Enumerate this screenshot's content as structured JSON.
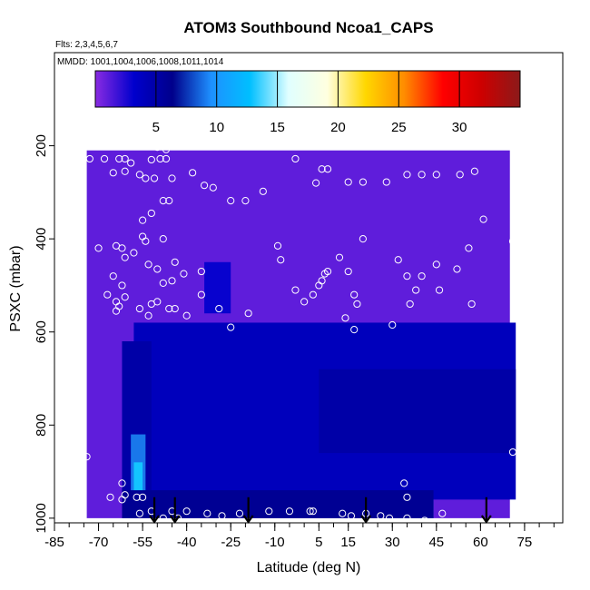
{
  "chart_data": {
    "type": "heatmap",
    "title": "ATOM3 Southbound Ncoa1_CAPS",
    "flights_label": "Flts: 2,3,4,5,6,7",
    "dates_label": "MMDD: 1001,1004,1006,1008,1011,1014",
    "xlabel": "Latitude (deg N)",
    "ylabel": "PSXC (mbar)",
    "xlim": [
      -85,
      88
    ],
    "ylim": [
      1010,
      0
    ],
    "x_ticks": [
      -85,
      -70,
      -55,
      -40,
      -25,
      -10,
      5,
      15,
      30,
      45,
      60,
      75
    ],
    "y_ticks": [
      200,
      400,
      600,
      800,
      1000
    ],
    "colorbar": {
      "min": 0,
      "max": 35,
      "ticks": [
        5,
        10,
        15,
        20,
        25,
        30
      ],
      "colors": [
        "#8a2be2",
        "#0000cd",
        "#00008b",
        "#1e90ff",
        "#00bfff",
        "#e0ffff",
        "#ffffe0",
        "#ffd700",
        "#ff8c00",
        "#ff0000",
        "#cd0000",
        "#8b1a1a"
      ]
    },
    "background_value": 1,
    "field": [
      {
        "lat": [
          -74,
          70
        ],
        "p": [
          210,
          1000
        ],
        "value": 1
      },
      {
        "lat": [
          -34,
          -25
        ],
        "p": [
          450,
          560
        ],
        "value": 3
      },
      {
        "lat": [
          -58,
          72
        ],
        "p": [
          580,
          960
        ],
        "value": 4
      },
      {
        "lat": [
          -62,
          -52
        ],
        "p": [
          620,
          960
        ],
        "value": 5
      },
      {
        "lat": [
          -59,
          -54
        ],
        "p": [
          820,
          960
        ],
        "value": 9
      },
      {
        "lat": [
          -58,
          -55
        ],
        "p": [
          880,
          955
        ],
        "value": 13
      },
      {
        "lat": [
          5,
          72
        ],
        "p": [
          680,
          860
        ],
        "value": 5
      },
      {
        "lat": [
          28,
          44
        ],
        "p": [
          960,
          1000
        ],
        "value": 9
      },
      {
        "lat": [
          -62,
          44
        ],
        "p": [
          940,
          1000
        ],
        "value": 6
      }
    ],
    "observation_points": [
      {
        "lat": -73,
        "p": 228
      },
      {
        "lat": -68,
        "p": 228
      },
      {
        "lat": -63,
        "p": 228
      },
      {
        "lat": -61,
        "p": 228
      },
      {
        "lat": -59,
        "p": 237
      },
      {
        "lat": -61,
        "p": 255
      },
      {
        "lat": -56,
        "p": 262
      },
      {
        "lat": -54,
        "p": 270
      },
      {
        "lat": -51,
        "p": 270
      },
      {
        "lat": -52,
        "p": 230
      },
      {
        "lat": -49,
        "p": 228
      },
      {
        "lat": -47,
        "p": 228
      },
      {
        "lat": -55,
        "p": 198
      },
      {
        "lat": -50,
        "p": 203
      },
      {
        "lat": -47,
        "p": 208
      },
      {
        "lat": -38,
        "p": 258
      },
      {
        "lat": -34,
        "p": 285
      },
      {
        "lat": -31,
        "p": 290
      },
      {
        "lat": -25,
        "p": 318
      },
      {
        "lat": -20,
        "p": 318
      },
      {
        "lat": -14,
        "p": 298
      },
      {
        "lat": -12,
        "p": 198
      },
      {
        "lat": -3,
        "p": 228
      },
      {
        "lat": 4,
        "p": 280
      },
      {
        "lat": 6,
        "p": 250
      },
      {
        "lat": 8,
        "p": 250
      },
      {
        "lat": 15,
        "p": 278
      },
      {
        "lat": 20,
        "p": 278
      },
      {
        "lat": 24,
        "p": 198
      },
      {
        "lat": 28,
        "p": 278
      },
      {
        "lat": 35,
        "p": 262
      },
      {
        "lat": 40,
        "p": 262
      },
      {
        "lat": 45,
        "p": 262
      },
      {
        "lat": 53,
        "p": 262
      },
      {
        "lat": 58,
        "p": 255
      },
      {
        "lat": 65,
        "p": 198
      },
      {
        "lat": 68,
        "p": 198
      },
      {
        "lat": 61,
        "p": 358
      },
      {
        "lat": 71,
        "p": 405
      },
      {
        "lat": 56,
        "p": 420
      },
      {
        "lat": -45,
        "p": 270
      },
      {
        "lat": -46,
        "p": 318
      },
      {
        "lat": -48,
        "p": 318
      },
      {
        "lat": -65,
        "p": 258
      },
      {
        "lat": -85,
        "p": 370
      },
      {
        "lat": -70,
        "p": 420
      },
      {
        "lat": -64,
        "p": 415
      },
      {
        "lat": -62,
        "p": 420
      },
      {
        "lat": -61,
        "p": 440
      },
      {
        "lat": -58,
        "p": 430
      },
      {
        "lat": -55,
        "p": 395
      },
      {
        "lat": -55,
        "p": 360
      },
      {
        "lat": -52,
        "p": 345
      },
      {
        "lat": -54,
        "p": 405
      },
      {
        "lat": -53,
        "p": 455
      },
      {
        "lat": -48,
        "p": 400
      },
      {
        "lat": -50,
        "p": 465
      },
      {
        "lat": -44,
        "p": 450
      },
      {
        "lat": -48,
        "p": 495
      },
      {
        "lat": -45,
        "p": 490
      },
      {
        "lat": -41,
        "p": 475
      },
      {
        "lat": -35,
        "p": 470
      },
      {
        "lat": -65,
        "p": 480
      },
      {
        "lat": -67,
        "p": 520
      },
      {
        "lat": -62,
        "p": 500
      },
      {
        "lat": -61,
        "p": 525
      },
      {
        "lat": -64,
        "p": 535
      },
      {
        "lat": -63,
        "p": 545
      },
      {
        "lat": -64,
        "p": 555
      },
      {
        "lat": -77,
        "p": 550
      },
      {
        "lat": -56,
        "p": 550
      },
      {
        "lat": -53,
        "p": 565
      },
      {
        "lat": -52,
        "p": 540
      },
      {
        "lat": -50,
        "p": 535
      },
      {
        "lat": -46,
        "p": 550
      },
      {
        "lat": -44,
        "p": 550
      },
      {
        "lat": -40,
        "p": 565
      },
      {
        "lat": -35,
        "p": 520
      },
      {
        "lat": -29,
        "p": 550
      },
      {
        "lat": -25,
        "p": 590
      },
      {
        "lat": -19,
        "p": 560
      },
      {
        "lat": -9,
        "p": 415
      },
      {
        "lat": -8,
        "p": 445
      },
      {
        "lat": -3,
        "p": 510
      },
      {
        "lat": 0,
        "p": 535
      },
      {
        "lat": 3,
        "p": 520
      },
      {
        "lat": 5,
        "p": 500
      },
      {
        "lat": 6,
        "p": 490
      },
      {
        "lat": 7,
        "p": 475
      },
      {
        "lat": 8,
        "p": 470
      },
      {
        "lat": 12,
        "p": 440
      },
      {
        "lat": 15,
        "p": 470
      },
      {
        "lat": 17,
        "p": 520
      },
      {
        "lat": 18,
        "p": 540
      },
      {
        "lat": 14,
        "p": 570
      },
      {
        "lat": 17,
        "p": 595
      },
      {
        "lat": 20,
        "p": 400
      },
      {
        "lat": 32,
        "p": 445
      },
      {
        "lat": 35,
        "p": 480
      },
      {
        "lat": 40,
        "p": 480
      },
      {
        "lat": 38,
        "p": 510
      },
      {
        "lat": 45,
        "p": 455
      },
      {
        "lat": 46,
        "p": 510
      },
      {
        "lat": 52,
        "p": 465
      },
      {
        "lat": 36,
        "p": 540
      },
      {
        "lat": 30,
        "p": 585
      },
      {
        "lat": 57,
        "p": 540
      },
      {
        "lat": -62,
        "p": 925
      },
      {
        "lat": -61,
        "p": 950
      },
      {
        "lat": -62,
        "p": 960
      },
      {
        "lat": -66,
        "p": 955
      },
      {
        "lat": -57,
        "p": 955
      },
      {
        "lat": -55,
        "p": 955
      },
      {
        "lat": -56,
        "p": 990
      },
      {
        "lat": -52,
        "p": 985
      },
      {
        "lat": -48,
        "p": 1000
      },
      {
        "lat": -45,
        "p": 985
      },
      {
        "lat": -43,
        "p": 1000
      },
      {
        "lat": -40,
        "p": 985
      },
      {
        "lat": -33,
        "p": 990
      },
      {
        "lat": -28,
        "p": 995
      },
      {
        "lat": -22,
        "p": 990
      },
      {
        "lat": -12,
        "p": 985
      },
      {
        "lat": -5,
        "p": 985
      },
      {
        "lat": 2,
        "p": 985
      },
      {
        "lat": 3,
        "p": 985
      },
      {
        "lat": 13,
        "p": 990
      },
      {
        "lat": 16,
        "p": 995
      },
      {
        "lat": 21,
        "p": 990
      },
      {
        "lat": 26,
        "p": 995
      },
      {
        "lat": 29,
        "p": 1000
      },
      {
        "lat": 34,
        "p": 925
      },
      {
        "lat": 35,
        "p": 955
      },
      {
        "lat": 35,
        "p": 1000
      },
      {
        "lat": 41,
        "p": 1005
      },
      {
        "lat": 47,
        "p": 990
      },
      {
        "lat": 71,
        "p": 858
      },
      {
        "lat": -74,
        "p": 868
      }
    ],
    "arrows": [
      {
        "lat": -51,
        "p_top": 955,
        "p_bottom": 1008
      },
      {
        "lat": -44,
        "p_top": 955,
        "p_bottom": 1008
      },
      {
        "lat": -19,
        "p_top": 955,
        "p_bottom": 1008
      },
      {
        "lat": 21,
        "p_top": 955,
        "p_bottom": 1008
      },
      {
        "lat": 62,
        "p_top": 955,
        "p_bottom": 1008
      }
    ]
  }
}
